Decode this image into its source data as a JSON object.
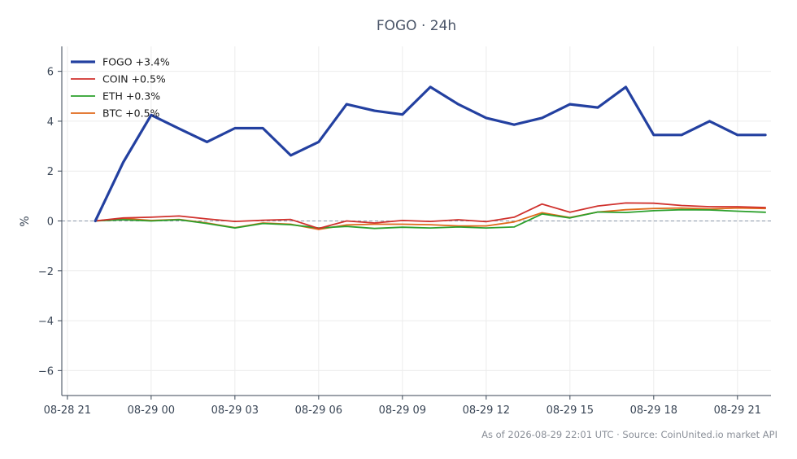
{
  "chart_data": {
    "type": "line",
    "title": "FOGO · 24h",
    "xlabel": "",
    "ylabel": "%",
    "ylim": [
      -7,
      7
    ],
    "yticks": [
      -6,
      -4,
      -2,
      0,
      2,
      4,
      6
    ],
    "ytick_labels": [
      "−6",
      "−4",
      "−2",
      "0",
      "2",
      "4",
      "6"
    ],
    "xlim_hours": [
      -3.2,
      22.2
    ],
    "xticks": [
      {
        "hours": -3,
        "label": "08-28 21"
      },
      {
        "hours": 0,
        "label": "08-29 00"
      },
      {
        "hours": 3,
        "label": "08-29 03"
      },
      {
        "hours": 6,
        "label": "08-29 06"
      },
      {
        "hours": 9,
        "label": "08-29 09"
      },
      {
        "hours": 12,
        "label": "08-29 12"
      },
      {
        "hours": 15,
        "label": "08-29 15"
      },
      {
        "hours": 18,
        "label": "08-29 18"
      },
      {
        "hours": 21,
        "label": "08-29 21"
      }
    ],
    "x_hours": [
      -2,
      -1,
      0,
      1,
      2,
      3,
      4,
      5,
      6,
      7,
      8,
      9,
      10,
      11,
      12,
      13,
      14,
      15,
      16,
      17,
      18,
      19,
      20,
      21,
      22
    ],
    "baseline": 0,
    "grid": true,
    "legend_position": "top-left",
    "series": [
      {
        "name": "FOGO +3.4%",
        "color": "#2340a0",
        "width": 3.2,
        "values": [
          0,
          2.35,
          4.25,
          3.7,
          3.17,
          3.72,
          3.72,
          2.63,
          3.17,
          4.68,
          4.42,
          4.27,
          5.37,
          4.68,
          4.13,
          3.86,
          4.13,
          4.68,
          4.55,
          5.37,
          3.45,
          3.45,
          4.0,
          3.45,
          3.45
        ]
      },
      {
        "name": "COIN +0.5%",
        "color": "#d0312d",
        "width": 1.8,
        "values": [
          0,
          0.12,
          0.15,
          0.2,
          0.08,
          -0.02,
          0.03,
          0.06,
          -0.3,
          0.0,
          -0.08,
          0.02,
          -0.02,
          0.05,
          -0.03,
          0.15,
          0.68,
          0.35,
          0.6,
          0.72,
          0.71,
          0.62,
          0.57,
          0.57,
          0.54
        ]
      },
      {
        "name": "ETH +0.3%",
        "color": "#2ca02c",
        "width": 1.8,
        "values": [
          0,
          0.05,
          0.0,
          0.05,
          -0.1,
          -0.28,
          -0.1,
          -0.15,
          -0.28,
          -0.22,
          -0.3,
          -0.25,
          -0.28,
          -0.24,
          -0.28,
          -0.24,
          0.28,
          0.12,
          0.36,
          0.34,
          0.41,
          0.45,
          0.44,
          0.39,
          0.35
        ]
      },
      {
        "name": "BTC +0.5%",
        "color": "#e06a1b",
        "width": 1.8,
        "values": [
          0,
          0.1,
          0.02,
          0.06,
          -0.08,
          -0.27,
          -0.08,
          -0.13,
          -0.34,
          -0.16,
          -0.13,
          -0.13,
          -0.15,
          -0.2,
          -0.2,
          -0.04,
          0.33,
          0.14,
          0.36,
          0.45,
          0.5,
          0.52,
          0.48,
          0.52,
          0.5
        ]
      }
    ]
  },
  "footer": "As of 2026-08-29 22:01 UTC · Source: CoinUnited.io market API"
}
